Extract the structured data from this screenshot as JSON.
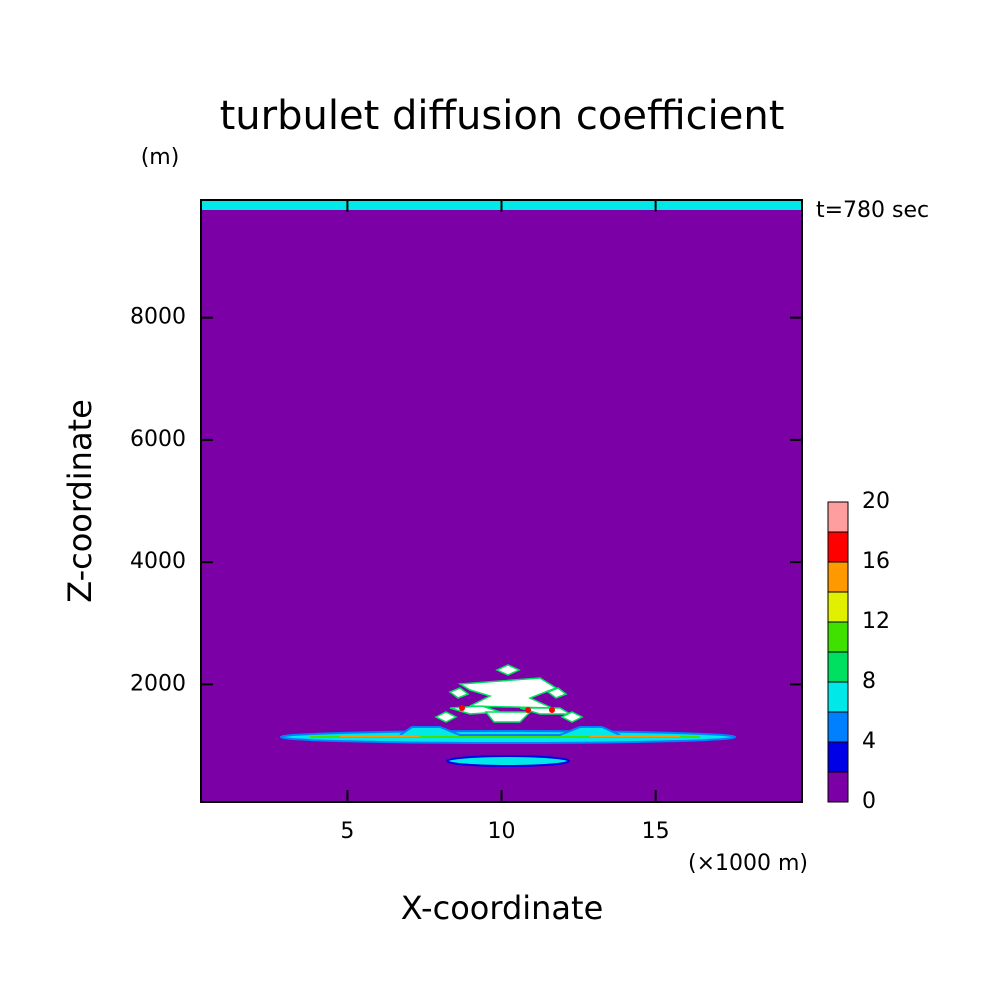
{
  "chart_data": {
    "type": "contour",
    "title": "turbulet diffusion coefficient",
    "y_unit": "(m)",
    "x_unit": "(×1000 m)",
    "xlabel": "X-coordinate",
    "ylabel": "Z-coordinate",
    "annotation": "t=780 sec",
    "xlim": [
      0.25,
      19.75
    ],
    "xticks": [
      5,
      10,
      15
    ],
    "ylim": [
      75,
      9925
    ],
    "yticks": [
      2000,
      4000,
      6000,
      8000
    ],
    "colorbar": {
      "levels": [
        0,
        2,
        4,
        6,
        8,
        10,
        12,
        14,
        16,
        18,
        20
      ],
      "ticks": [
        0,
        4,
        8,
        12,
        16,
        20
      ],
      "colors": [
        "#7b00a6",
        "#0000e6",
        "#0080ff",
        "#00e8e8",
        "#00e060",
        "#40e000",
        "#e0f000",
        "#ff9900",
        "#ff0000",
        "#ff9e9e"
      ]
    }
  }
}
